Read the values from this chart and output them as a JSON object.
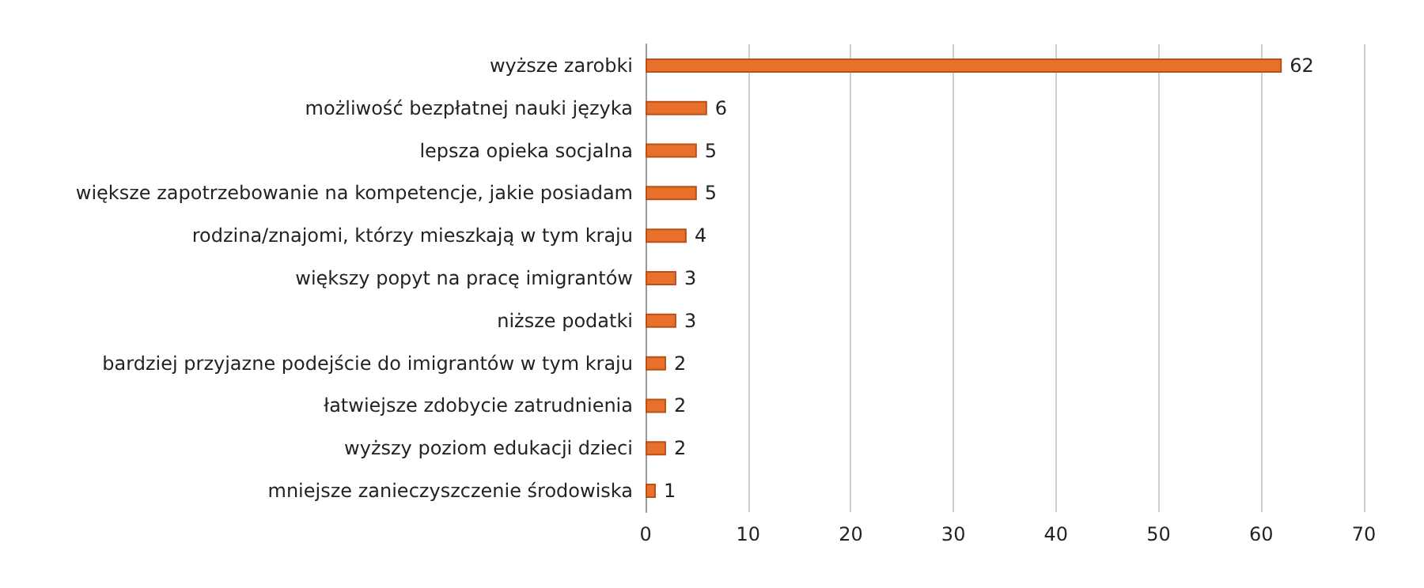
{
  "chart_data": {
    "type": "bar",
    "orientation": "horizontal",
    "categories": [
      "wyższe zarobki",
      "możliwość bezpłatnej nauki języka",
      "lepsza opieka socjalna",
      "większe zapotrzebowanie na kompetencje, jakie posiadam",
      "rodzina/znajomi, którzy mieszkają w tym kraju",
      "większy popyt na pracę imigrantów",
      "niższe podatki",
      "bardziej przyjazne podejście do imigrantów w tym kraju",
      "łatwiejsze zdobycie zatrudnienia",
      "wyższy poziom edukacji dzieci",
      "mniejsze zanieczyszczenie środowiska"
    ],
    "values": [
      62,
      6,
      5,
      5,
      4,
      3,
      3,
      2,
      2,
      2,
      1
    ],
    "color": "#e8702a",
    "xlim": [
      0,
      70
    ],
    "xticks": [
      0,
      10,
      20,
      30,
      40,
      50,
      60,
      70
    ],
    "grid": "x",
    "data_labels": true
  }
}
